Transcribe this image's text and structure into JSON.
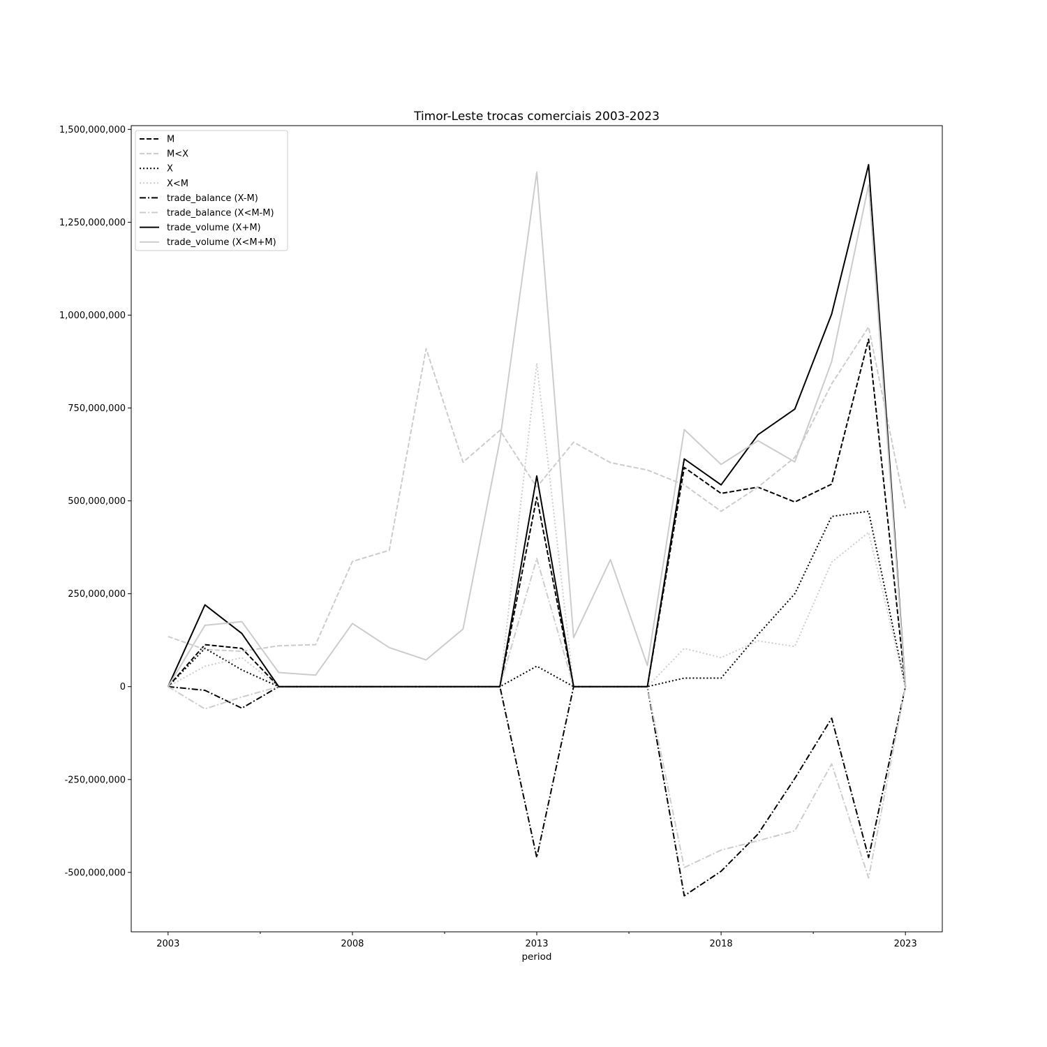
{
  "chart_data": {
    "type": "line",
    "title": "Timor-Leste trocas comerciais 2003-2023",
    "xlabel": "period",
    "ylabel": "",
    "x": [
      2003,
      2004,
      2005,
      2006,
      2007,
      2008,
      2009,
      2010,
      2011,
      2012,
      2013,
      2014,
      2015,
      2016,
      2017,
      2018,
      2019,
      2020,
      2021,
      2022,
      2023
    ],
    "xlim": [
      2002,
      2024
    ],
    "ylim": [
      -660000000,
      1510000000
    ],
    "x_ticks": [
      2003,
      2008,
      2013,
      2018,
      2023
    ],
    "x_tick_labels": [
      "2003",
      "2008",
      "2013",
      "2018",
      "2023"
    ],
    "x_minor_ticks": [
      2005.5,
      2010.5,
      2015.5,
      2020.5
    ],
    "y_ticks": [
      -500000000,
      -250000000,
      0,
      250000000,
      500000000,
      750000000,
      1000000000,
      1250000000,
      1500000000
    ],
    "y_tick_labels": [
      "-500,000,000",
      "-250,000,000",
      "0",
      "250,000,000",
      "500,000,000",
      "750,000,000",
      "1,000,000,000",
      "1,250,000,000",
      "1,500,000,000"
    ],
    "grid": false,
    "legend_position": "top-left",
    "series": [
      {
        "name": "M",
        "color": "#000000",
        "dash": "dashed",
        "values": [
          0,
          113000000,
          103000000,
          0,
          0,
          0,
          0,
          0,
          0,
          0,
          510000000,
          0,
          0,
          0,
          590000000,
          520000000,
          537000000,
          497000000,
          545000000,
          935000000,
          0
        ]
      },
      {
        "name": "M<X",
        "color": "#cccccc",
        "dash": "dashed",
        "values": [
          135000000,
          100000000,
          95000000,
          110000000,
          113000000,
          337000000,
          367000000,
          910000000,
          604000000,
          690000000,
          537000000,
          658000000,
          603000000,
          583000000,
          543000000,
          472000000,
          537000000,
          617000000,
          815000000,
          968000000,
          480000000
        ]
      },
      {
        "name": "X",
        "color": "#000000",
        "dash": "dotted",
        "values": [
          0,
          103000000,
          45000000,
          0,
          0,
          0,
          0,
          0,
          0,
          0,
          55000000,
          0,
          0,
          0,
          23000000,
          23000000,
          140000000,
          250000000,
          458000000,
          472000000,
          0
        ]
      },
      {
        "name": "X<M",
        "color": "#cccccc",
        "dash": "dotted",
        "values": [
          0,
          55000000,
          78000000,
          0,
          0,
          0,
          0,
          0,
          0,
          0,
          870000000,
          0,
          0,
          0,
          103000000,
          78000000,
          123000000,
          108000000,
          335000000,
          415000000,
          0
        ]
      },
      {
        "name": "trade_balance (X-M)",
        "color": "#000000",
        "dash": "dashdot",
        "values": [
          0,
          -10000000,
          -58000000,
          0,
          0,
          0,
          0,
          0,
          0,
          0,
          -460000000,
          0,
          0,
          0,
          -563000000,
          -497000000,
          -397000000,
          -247000000,
          -85000000,
          -460000000,
          0
        ]
      },
      {
        "name": "trade_balance (X<M-M)",
        "color": "#cccccc",
        "dash": "dashdot",
        "values": [
          0,
          -60000000,
          -28000000,
          0,
          0,
          0,
          0,
          0,
          0,
          0,
          345000000,
          0,
          0,
          0,
          -487000000,
          -440000000,
          -415000000,
          -388000000,
          -208000000,
          -515000000,
          0
        ]
      },
      {
        "name": "trade_volume (X+M)",
        "color": "#000000",
        "dash": "solid",
        "values": [
          0,
          220000000,
          143000000,
          0,
          0,
          0,
          0,
          0,
          0,
          0,
          567000000,
          0,
          0,
          0,
          613000000,
          543000000,
          678000000,
          747000000,
          1003000000,
          1405000000,
          0
        ]
      },
      {
        "name": "trade_volume (X<M+M)",
        "color": "#cccccc",
        "dash": "solid",
        "values": [
          0,
          165000000,
          175000000,
          38000000,
          31000000,
          170000000,
          105000000,
          72000000,
          155000000,
          663000000,
          1385000000,
          132000000,
          342000000,
          57000000,
          692000000,
          598000000,
          662000000,
          605000000,
          875000000,
          1350000000,
          0
        ]
      }
    ]
  }
}
